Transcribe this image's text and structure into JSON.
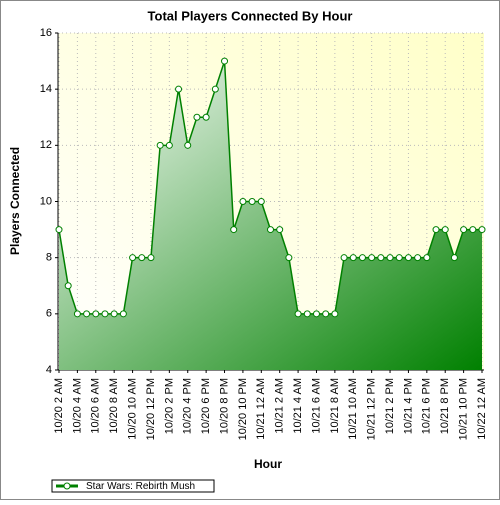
{
  "chart_data": {
    "type": "area",
    "title": "Total Players Connected By Hour",
    "x_label": "Hour",
    "y_label": "Players Connected",
    "categories": [
      "10/20 2 AM",
      null,
      "10/20 4 AM",
      null,
      "10/20 6 AM",
      null,
      "10/20 8 AM",
      null,
      "10/20 10 AM",
      null,
      "10/20 12 PM",
      null,
      "10/20 2 PM",
      null,
      "10/20 4 PM",
      null,
      "10/20 6 PM",
      null,
      "10/20 8 PM",
      null,
      "10/20 10 PM",
      null,
      "10/21 12 AM",
      null,
      "10/21 2 AM",
      null,
      "10/21 4 AM",
      null,
      "10/21 6 AM",
      null,
      "10/21 8 AM",
      null,
      "10/21 10 AM",
      null,
      "10/21 12 PM",
      null,
      "10/21 2 PM",
      null,
      "10/21 4 PM",
      null,
      "10/21 6 PM",
      null,
      "10/21 8 PM",
      null,
      "10/21 10 PM",
      null,
      "10/22 12 AM"
    ],
    "series": [
      {
        "name": "Star Wars: Rebirth Mush",
        "color": "#008000",
        "values": [
          9,
          7,
          6,
          6,
          6,
          6,
          6,
          6,
          8,
          8,
          8,
          12,
          12,
          14,
          12,
          13,
          13,
          14,
          15,
          9,
          10,
          10,
          10,
          9,
          9,
          8,
          6,
          6,
          6,
          6,
          6,
          8,
          8,
          8,
          8,
          8,
          8,
          8,
          8,
          8,
          8,
          9,
          9,
          8,
          9,
          9,
          9
        ]
      }
    ],
    "ylim": [
      4,
      16
    ],
    "yticks": [
      4,
      6,
      8,
      10,
      12,
      14,
      16
    ],
    "grid": true,
    "legend": "bottom-left"
  }
}
